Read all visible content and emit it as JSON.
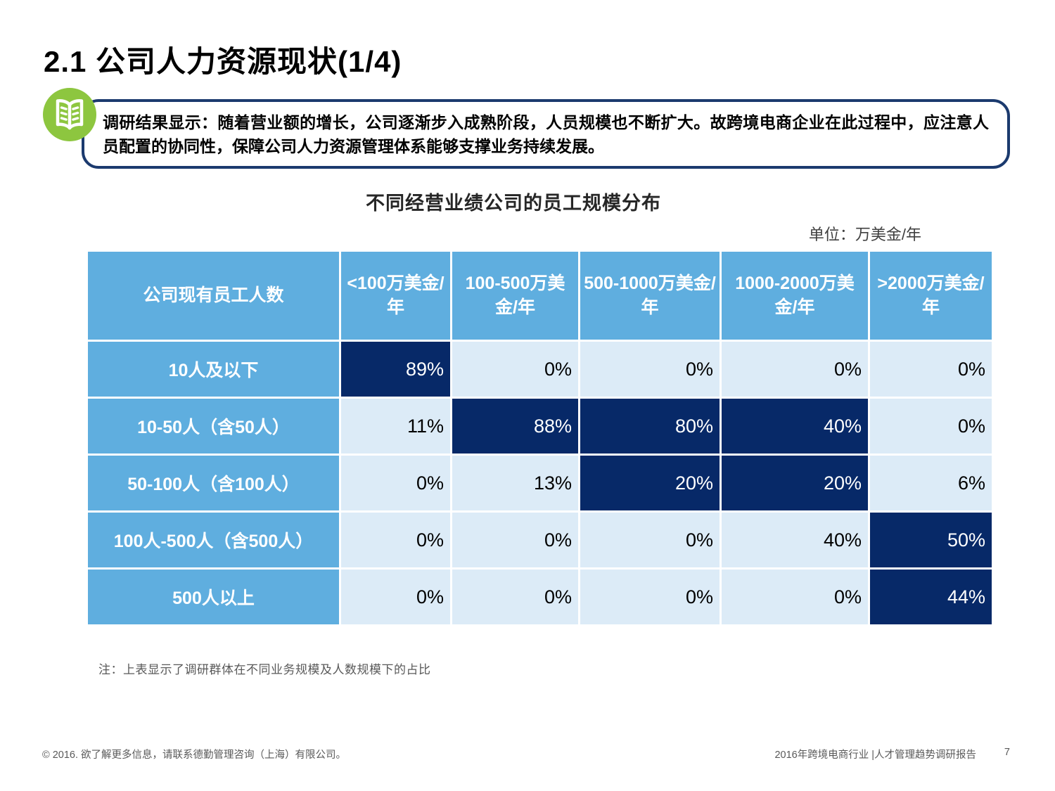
{
  "slide": {
    "title": "2.1 公司人力资源现状(1/4)"
  },
  "callout": {
    "icon": "open-book-icon",
    "text": "调研结果显示：随着营业额的增长，公司逐渐步入成熟阶段，人员规模也不断扩大。故跨境电商企业在此过程中，应注意人员配置的协同性，保障公司人力资源管理体系能够支撑业务持续发展。"
  },
  "table_section": {
    "title": "不同经营业绩公司的员工规模分布",
    "unit_label": "单位：万美金/年",
    "note": "注：上表显示了调研群体在不同业务规模及人数规模下的占比"
  },
  "chart_data": {
    "type": "table",
    "title": "不同经营业绩公司的员工规模分布",
    "unit": "万美金/年",
    "corner_header": "公司现有员工人数",
    "column_headers": [
      "<100万美金/年",
      "100-500万美金/年",
      "500-1000万美金/年",
      "1000-2000万美金/年",
      ">2000万美金/年"
    ],
    "rows": [
      {
        "label": "10人及以下",
        "values": [
          "89%",
          "0%",
          "0%",
          "0%",
          "0%"
        ],
        "highlighted": [
          true,
          false,
          false,
          false,
          false
        ]
      },
      {
        "label": "10-50人（含50人）",
        "values": [
          "11%",
          "88%",
          "80%",
          "40%",
          "0%"
        ],
        "highlighted": [
          false,
          true,
          true,
          true,
          false
        ]
      },
      {
        "label": "50-100人（含100人）",
        "values": [
          "0%",
          "13%",
          "20%",
          "20%",
          "6%"
        ],
        "highlighted": [
          false,
          false,
          true,
          true,
          false
        ]
      },
      {
        "label": "100人-500人（含500人）",
        "values": [
          "0%",
          "0%",
          "0%",
          "40%",
          "50%"
        ],
        "highlighted": [
          false,
          false,
          false,
          false,
          true
        ]
      },
      {
        "label": "500人以上",
        "values": [
          "0%",
          "0%",
          "0%",
          "0%",
          "44%"
        ],
        "highlighted": [
          false,
          false,
          false,
          false,
          true
        ]
      }
    ]
  },
  "footer": {
    "copyright": "© 2016. 欲了解更多信息，请联系德勤管理咨询（上海）有限公司。",
    "report_name": "2016年跨境电商行业 |人才管理趋势调研报告",
    "page_number": "7"
  },
  "colors": {
    "header_blue": "#5FAEDF",
    "highlight_navy": "#072968",
    "cell_light_blue": "#DCEBF7",
    "callout_border_navy": "#1B3A6E",
    "icon_green": "#8DC63F",
    "muted_gray": "#595959"
  }
}
